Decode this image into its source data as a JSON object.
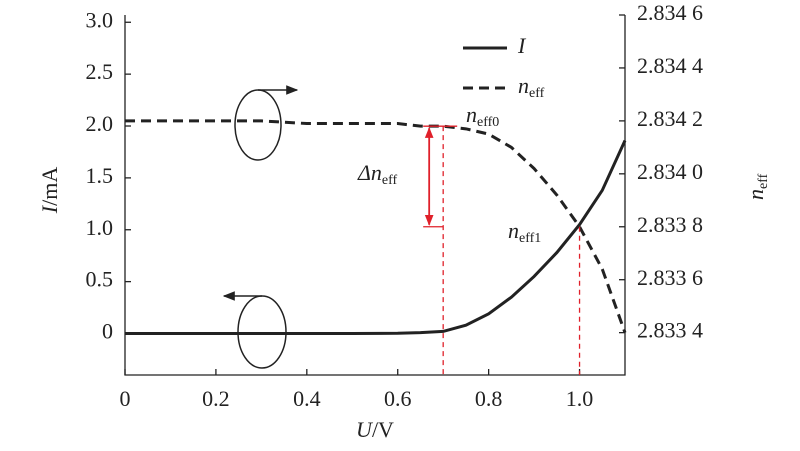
{
  "chart_data": {
    "type": "line",
    "x": [
      0,
      0.1,
      0.2,
      0.3,
      0.4,
      0.5,
      0.6,
      0.65,
      0.7,
      0.75,
      0.8,
      0.85,
      0.9,
      0.95,
      1.0,
      1.05,
      1.1
    ],
    "series": [
      {
        "name": "I",
        "color": "#222222",
        "dash": false,
        "values": [
          0,
          0,
          0,
          0,
          0,
          0,
          0.002,
          0.008,
          0.02,
          0.08,
          0.19,
          0.35,
          0.55,
          0.78,
          1.05,
          1.38,
          1.86
        ]
      },
      {
        "name": {
          "symbol": "n",
          "subscript": "eff"
        },
        "color": "#222222",
        "dash": true,
        "axis": "y2",
        "values": [
          2.8342,
          2.8342,
          2.8342,
          2.8342,
          2.83419,
          2.83419,
          2.83419,
          2.83418,
          2.83418,
          2.83417,
          2.83415,
          2.8341,
          2.83402,
          2.83392,
          2.8338,
          2.83364,
          2.8334
        ]
      }
    ],
    "xlabel": {
      "symbol": "U",
      "unit": "/V"
    },
    "ylabel": {
      "symbol": "I",
      "unit": "/mA"
    },
    "y2label": {
      "symbol": "n",
      "subscript": "eff"
    },
    "xlim": [
      0,
      1.1
    ],
    "xticks": [
      0,
      0.2,
      0.4,
      0.6,
      0.8,
      {
        "value": 1,
        "label": "1.0"
      }
    ],
    "ylim": [
      -0.4,
      3.07
    ],
    "yticks": [
      0,
      0.5,
      {
        "value": 1,
        "label": "1.0"
      },
      1.5,
      {
        "value": 2,
        "label": "2.0"
      },
      2.5,
      {
        "value": 3,
        "label": "3.0"
      }
    ],
    "y2lim": [
      2.83324,
      2.8346
    ],
    "y2ticks": [
      {
        "value": 2.8334,
        "label": "2.833 4"
      },
      {
        "value": 2.8336,
        "label": "2.833 6"
      },
      {
        "value": 2.8338,
        "label": "2.833 8"
      },
      {
        "value": 2.834,
        "label": "2.834 0"
      },
      {
        "value": 2.8342,
        "label": "2.834 2"
      },
      {
        "value": 2.8344,
        "label": "2.834 4"
      },
      {
        "value": 2.8346,
        "label": "2.834 6"
      }
    ],
    "annotations": [
      {
        "symbol": "n",
        "subscript": "eff0"
      },
      {
        "symbol": "Δn",
        "subscript": "eff"
      },
      {
        "symbol": "n",
        "subscript": "eff1"
      }
    ],
    "marker_color": "#e0202a"
  }
}
